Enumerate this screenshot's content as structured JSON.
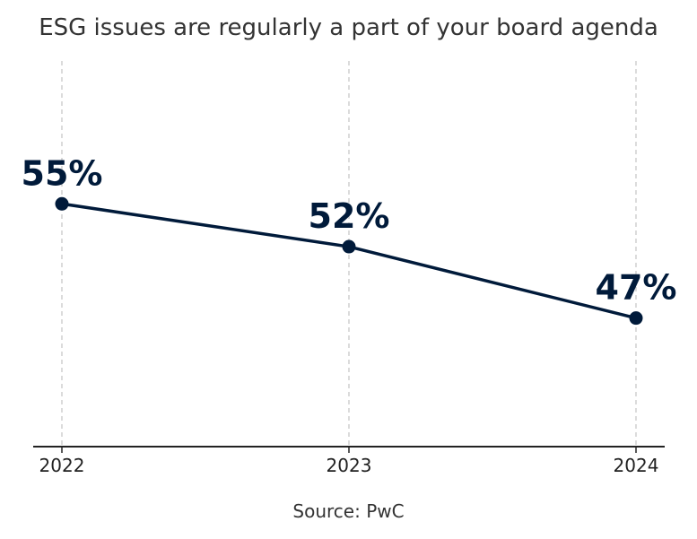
{
  "chart_data": {
    "type": "line",
    "title": "ESG issues are regularly a part of your board agenda",
    "source": "Source: PwC",
    "x": [
      "2022",
      "2023",
      "2024"
    ],
    "series": [
      {
        "values": [
          55,
          52,
          47
        ],
        "labels": [
          "55%",
          "52%",
          "47%"
        ]
      }
    ],
    "ylim": [
      38,
      65
    ],
    "grid": "vertical dashed",
    "legend": "none",
    "color": "#001a3a"
  }
}
